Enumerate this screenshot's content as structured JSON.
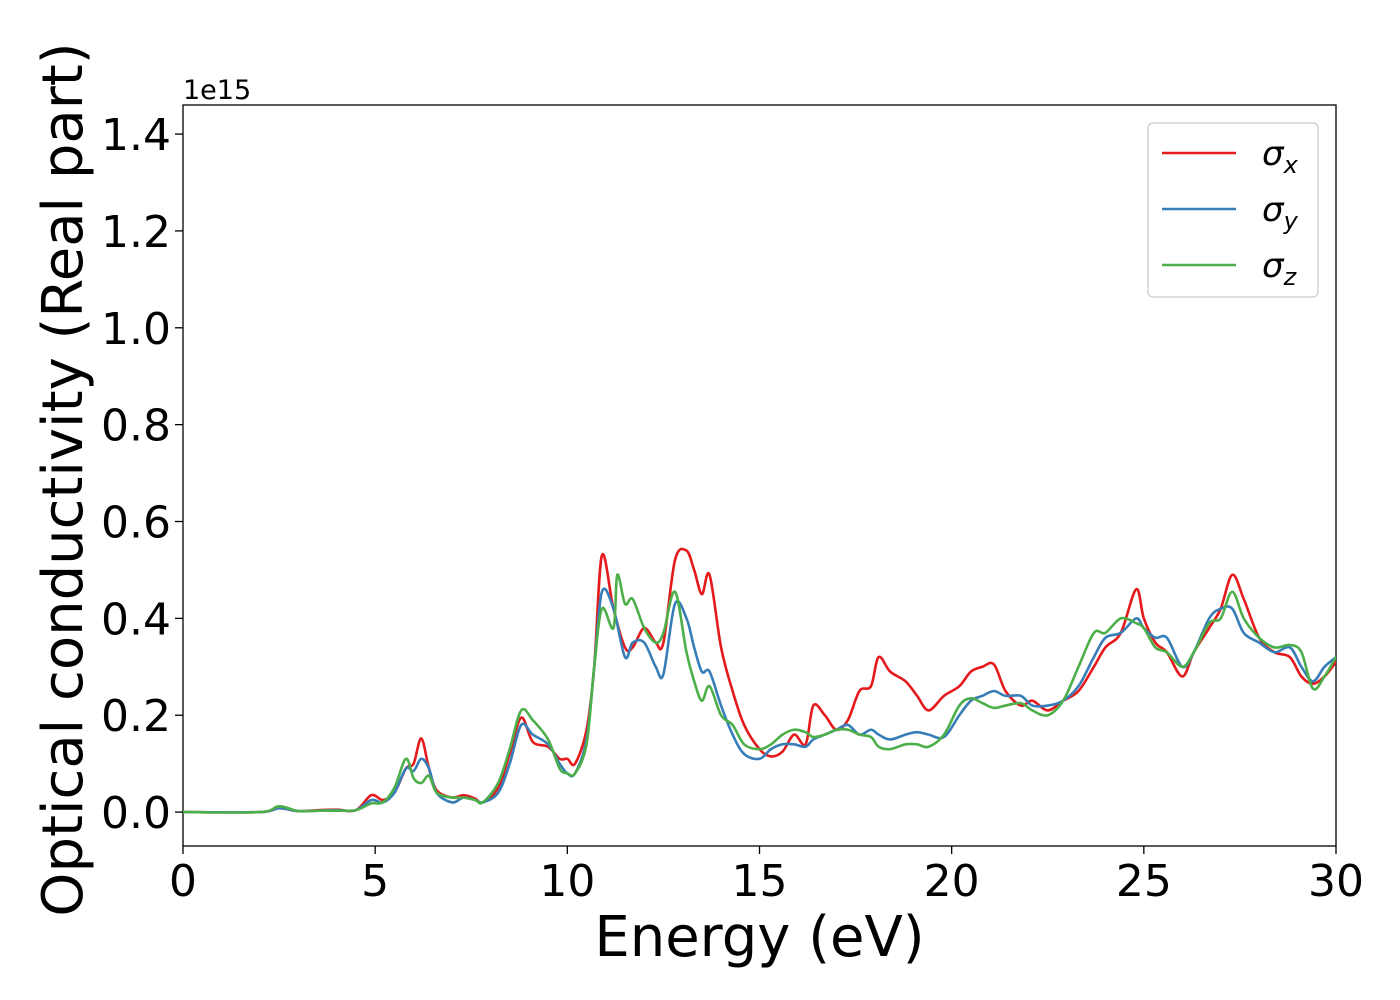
{
  "chart_data": {
    "type": "line",
    "xlabel": "Energy (eV)",
    "ylabel": "Optical conductivity (Real part)",
    "y_offset_label": "1e15",
    "xlim": [
      0,
      30
    ],
    "ylim": [
      -0.07,
      1.46
    ],
    "x_ticks": [
      0,
      5,
      10,
      15,
      20,
      25,
      30
    ],
    "x_tick_labels": [
      "0",
      "5",
      "10",
      "15",
      "20",
      "25",
      "30"
    ],
    "y_ticks": [
      0.0,
      0.2,
      0.4,
      0.6,
      0.8,
      1.0,
      1.2,
      1.4
    ],
    "y_tick_labels": [
      "0.0",
      "0.2",
      "0.4",
      "0.6",
      "0.8",
      "1.0",
      "1.2",
      "1.4"
    ],
    "grid": false,
    "legend_position": "top-right",
    "series": [
      {
        "name": "σx",
        "symbol": "σ",
        "subscript": "x",
        "color": "#e41a1c",
        "points": [
          [
            0,
            0
          ],
          [
            2,
            0
          ],
          [
            2.5,
            0.008
          ],
          [
            3,
            0.002
          ],
          [
            3.5,
            0.004
          ],
          [
            4,
            0.005
          ],
          [
            4.5,
            0.004
          ],
          [
            4.9,
            0.035
          ],
          [
            5.2,
            0.025
          ],
          [
            5.5,
            0.04
          ],
          [
            5.8,
            0.09
          ],
          [
            6,
            0.1
          ],
          [
            6.2,
            0.152
          ],
          [
            6.4,
            0.09
          ],
          [
            6.6,
            0.045
          ],
          [
            7,
            0.03
          ],
          [
            7.3,
            0.035
          ],
          [
            7.6,
            0.028
          ],
          [
            7.8,
            0.02
          ],
          [
            8.2,
            0.05
          ],
          [
            8.5,
            0.12
          ],
          [
            8.8,
            0.195
          ],
          [
            9.1,
            0.145
          ],
          [
            9.5,
            0.135
          ],
          [
            9.8,
            0.11
          ],
          [
            10,
            0.11
          ],
          [
            10.2,
            0.1
          ],
          [
            10.5,
            0.17
          ],
          [
            10.7,
            0.3
          ],
          [
            10.9,
            0.53
          ],
          [
            11.2,
            0.42
          ],
          [
            11.5,
            0.34
          ],
          [
            11.7,
            0.34
          ],
          [
            12,
            0.38
          ],
          [
            12.3,
            0.35
          ],
          [
            12.5,
            0.35
          ],
          [
            12.8,
            0.52
          ],
          [
            13.1,
            0.54
          ],
          [
            13.3,
            0.5
          ],
          [
            13.5,
            0.45
          ],
          [
            13.7,
            0.49
          ],
          [
            14,
            0.34
          ],
          [
            14.3,
            0.25
          ],
          [
            14.6,
            0.18
          ],
          [
            15,
            0.13
          ],
          [
            15.3,
            0.115
          ],
          [
            15.6,
            0.125
          ],
          [
            15.9,
            0.16
          ],
          [
            16.2,
            0.14
          ],
          [
            16.4,
            0.22
          ],
          [
            16.7,
            0.2
          ],
          [
            17,
            0.17
          ],
          [
            17.3,
            0.19
          ],
          [
            17.6,
            0.25
          ],
          [
            17.9,
            0.26
          ],
          [
            18.1,
            0.32
          ],
          [
            18.4,
            0.29
          ],
          [
            18.8,
            0.27
          ],
          [
            19.1,
            0.24
          ],
          [
            19.4,
            0.21
          ],
          [
            19.8,
            0.24
          ],
          [
            20.2,
            0.26
          ],
          [
            20.5,
            0.29
          ],
          [
            20.8,
            0.3
          ],
          [
            21.1,
            0.305
          ],
          [
            21.4,
            0.25
          ],
          [
            21.8,
            0.22
          ],
          [
            22.1,
            0.23
          ],
          [
            22.5,
            0.21
          ],
          [
            22.9,
            0.23
          ],
          [
            23.3,
            0.25
          ],
          [
            23.7,
            0.3
          ],
          [
            24,
            0.34
          ],
          [
            24.4,
            0.37
          ],
          [
            24.8,
            0.46
          ],
          [
            25,
            0.4
          ],
          [
            25.3,
            0.35
          ],
          [
            25.6,
            0.33
          ],
          [
            26,
            0.28
          ],
          [
            26.3,
            0.33
          ],
          [
            26.7,
            0.38
          ],
          [
            27,
            0.42
          ],
          [
            27.3,
            0.49
          ],
          [
            27.6,
            0.44
          ],
          [
            28,
            0.36
          ],
          [
            28.4,
            0.33
          ],
          [
            28.8,
            0.32
          ],
          [
            29.1,
            0.28
          ],
          [
            29.4,
            0.265
          ],
          [
            29.7,
            0.28
          ],
          [
            30,
            0.31
          ]
        ]
      },
      {
        "name": "σy",
        "symbol": "σ",
        "subscript": "y",
        "color": "#377eb8",
        "points": [
          [
            0,
            0
          ],
          [
            2,
            0
          ],
          [
            2.5,
            0.008
          ],
          [
            3,
            0.002
          ],
          [
            3.5,
            0.003
          ],
          [
            4,
            0.004
          ],
          [
            4.5,
            0.004
          ],
          [
            4.9,
            0.025
          ],
          [
            5.2,
            0.02
          ],
          [
            5.5,
            0.04
          ],
          [
            5.8,
            0.09
          ],
          [
            6,
            0.085
          ],
          [
            6.2,
            0.11
          ],
          [
            6.4,
            0.09
          ],
          [
            6.6,
            0.04
          ],
          [
            7,
            0.02
          ],
          [
            7.3,
            0.03
          ],
          [
            7.6,
            0.025
          ],
          [
            7.8,
            0.02
          ],
          [
            8.2,
            0.04
          ],
          [
            8.5,
            0.1
          ],
          [
            8.8,
            0.18
          ],
          [
            9.1,
            0.16
          ],
          [
            9.5,
            0.14
          ],
          [
            9.8,
            0.1
          ],
          [
            10,
            0.08
          ],
          [
            10.2,
            0.08
          ],
          [
            10.5,
            0.15
          ],
          [
            10.7,
            0.3
          ],
          [
            10.9,
            0.455
          ],
          [
            11.2,
            0.42
          ],
          [
            11.5,
            0.32
          ],
          [
            11.7,
            0.35
          ],
          [
            12,
            0.35
          ],
          [
            12.3,
            0.3
          ],
          [
            12.5,
            0.285
          ],
          [
            12.8,
            0.43
          ],
          [
            13.1,
            0.4
          ],
          [
            13.3,
            0.34
          ],
          [
            13.5,
            0.29
          ],
          [
            13.7,
            0.29
          ],
          [
            14,
            0.22
          ],
          [
            14.3,
            0.16
          ],
          [
            14.6,
            0.12
          ],
          [
            15,
            0.11
          ],
          [
            15.3,
            0.13
          ],
          [
            15.6,
            0.14
          ],
          [
            15.9,
            0.14
          ],
          [
            16.2,
            0.135
          ],
          [
            16.4,
            0.15
          ],
          [
            16.7,
            0.16
          ],
          [
            17,
            0.17
          ],
          [
            17.3,
            0.18
          ],
          [
            17.6,
            0.16
          ],
          [
            17.9,
            0.17
          ],
          [
            18.1,
            0.16
          ],
          [
            18.4,
            0.15
          ],
          [
            18.8,
            0.16
          ],
          [
            19.1,
            0.165
          ],
          [
            19.4,
            0.16
          ],
          [
            19.8,
            0.155
          ],
          [
            20.2,
            0.2
          ],
          [
            20.5,
            0.23
          ],
          [
            20.8,
            0.24
          ],
          [
            21.1,
            0.25
          ],
          [
            21.4,
            0.24
          ],
          [
            21.8,
            0.24
          ],
          [
            22.1,
            0.22
          ],
          [
            22.5,
            0.22
          ],
          [
            22.9,
            0.23
          ],
          [
            23.3,
            0.26
          ],
          [
            23.7,
            0.32
          ],
          [
            24,
            0.36
          ],
          [
            24.4,
            0.37
          ],
          [
            24.8,
            0.4
          ],
          [
            25,
            0.38
          ],
          [
            25.3,
            0.36
          ],
          [
            25.6,
            0.36
          ],
          [
            26,
            0.3
          ],
          [
            26.3,
            0.33
          ],
          [
            26.7,
            0.4
          ],
          [
            27,
            0.42
          ],
          [
            27.3,
            0.42
          ],
          [
            27.6,
            0.37
          ],
          [
            28,
            0.35
          ],
          [
            28.4,
            0.33
          ],
          [
            28.8,
            0.34
          ],
          [
            29.1,
            0.3
          ],
          [
            29.4,
            0.27
          ],
          [
            29.7,
            0.3
          ],
          [
            30,
            0.32
          ]
        ]
      },
      {
        "name": "σz",
        "symbol": "σ",
        "subscript": "z",
        "color": "#4daf4a",
        "points": [
          [
            0,
            0
          ],
          [
            2,
            0
          ],
          [
            2.5,
            0.012
          ],
          [
            3,
            0.002
          ],
          [
            3.5,
            0.003
          ],
          [
            4,
            0.003
          ],
          [
            4.5,
            0.004
          ],
          [
            4.9,
            0.018
          ],
          [
            5.2,
            0.02
          ],
          [
            5.5,
            0.05
          ],
          [
            5.8,
            0.11
          ],
          [
            6,
            0.07
          ],
          [
            6.2,
            0.06
          ],
          [
            6.4,
            0.075
          ],
          [
            6.6,
            0.04
          ],
          [
            7,
            0.03
          ],
          [
            7.3,
            0.03
          ],
          [
            7.6,
            0.025
          ],
          [
            7.8,
            0.02
          ],
          [
            8.2,
            0.06
          ],
          [
            8.5,
            0.13
          ],
          [
            8.8,
            0.21
          ],
          [
            9.1,
            0.19
          ],
          [
            9.5,
            0.15
          ],
          [
            9.8,
            0.09
          ],
          [
            10,
            0.08
          ],
          [
            10.2,
            0.08
          ],
          [
            10.5,
            0.14
          ],
          [
            10.7,
            0.3
          ],
          [
            10.9,
            0.42
          ],
          [
            11.2,
            0.38
          ],
          [
            11.3,
            0.49
          ],
          [
            11.5,
            0.43
          ],
          [
            11.7,
            0.44
          ],
          [
            12,
            0.38
          ],
          [
            12.3,
            0.35
          ],
          [
            12.5,
            0.37
          ],
          [
            12.8,
            0.455
          ],
          [
            13.1,
            0.33
          ],
          [
            13.3,
            0.27
          ],
          [
            13.5,
            0.23
          ],
          [
            13.7,
            0.26
          ],
          [
            14,
            0.2
          ],
          [
            14.3,
            0.18
          ],
          [
            14.6,
            0.14
          ],
          [
            15,
            0.13
          ],
          [
            15.3,
            0.14
          ],
          [
            15.6,
            0.16
          ],
          [
            15.9,
            0.17
          ],
          [
            16.2,
            0.165
          ],
          [
            16.4,
            0.155
          ],
          [
            16.7,
            0.16
          ],
          [
            17,
            0.17
          ],
          [
            17.3,
            0.17
          ],
          [
            17.6,
            0.16
          ],
          [
            17.9,
            0.155
          ],
          [
            18.1,
            0.135
          ],
          [
            18.4,
            0.13
          ],
          [
            18.8,
            0.14
          ],
          [
            19.1,
            0.14
          ],
          [
            19.4,
            0.135
          ],
          [
            19.8,
            0.16
          ],
          [
            20.2,
            0.22
          ],
          [
            20.5,
            0.235
          ],
          [
            20.8,
            0.225
          ],
          [
            21.1,
            0.215
          ],
          [
            21.4,
            0.22
          ],
          [
            21.8,
            0.225
          ],
          [
            22.1,
            0.21
          ],
          [
            22.5,
            0.2
          ],
          [
            22.9,
            0.23
          ],
          [
            23.3,
            0.3
          ],
          [
            23.7,
            0.37
          ],
          [
            24,
            0.37
          ],
          [
            24.4,
            0.4
          ],
          [
            24.8,
            0.39
          ],
          [
            25,
            0.38
          ],
          [
            25.3,
            0.34
          ],
          [
            25.6,
            0.33
          ],
          [
            26,
            0.3
          ],
          [
            26.3,
            0.33
          ],
          [
            26.7,
            0.39
          ],
          [
            27,
            0.4
          ],
          [
            27.3,
            0.455
          ],
          [
            27.6,
            0.4
          ],
          [
            28,
            0.36
          ],
          [
            28.4,
            0.34
          ],
          [
            28.8,
            0.345
          ],
          [
            29.1,
            0.33
          ],
          [
            29.4,
            0.255
          ],
          [
            29.7,
            0.28
          ],
          [
            30,
            0.32
          ]
        ]
      }
    ]
  }
}
